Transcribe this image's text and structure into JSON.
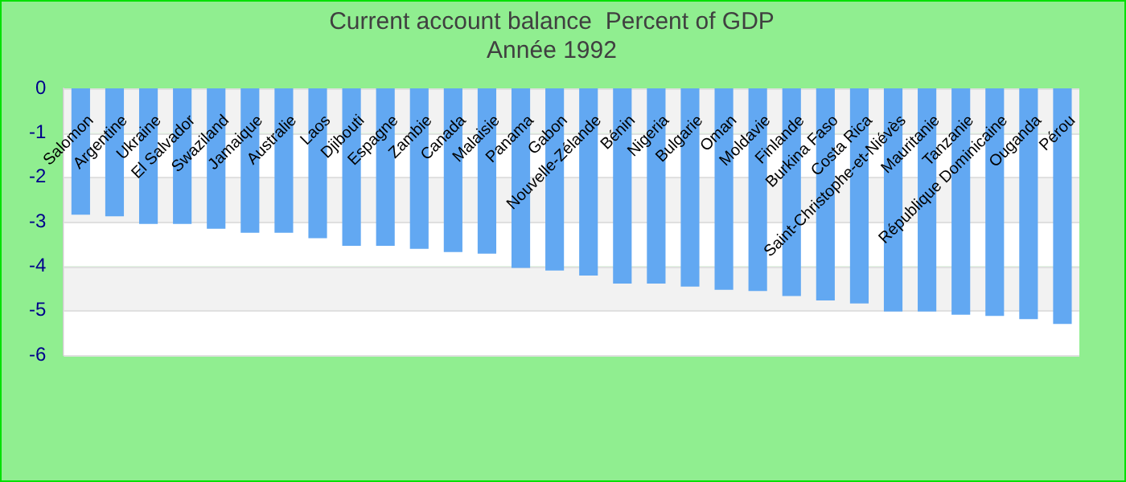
{
  "chart_data": {
    "type": "bar",
    "title": "Current account balance  Percent of GDP",
    "subtitle": "Année 1992",
    "categories": [
      "Salomon",
      "Argentine",
      "Ukraine",
      "El Salvador",
      "Swaziland",
      "Jamaique",
      "Australie",
      "Laos",
      "Djibouti",
      "Espagne",
      "Zambie",
      "Canada",
      "Malaisie",
      "Panama",
      "Gabon",
      "Nouvelle-Zélande",
      "Bénin",
      "Nigeria",
      "Bulgarie",
      "Oman",
      "Moldavie",
      "Finlande",
      "Burkina Faso",
      "Costa Rica",
      "Saint-Christophe-et-Niévès",
      "Mauritanie",
      "Tanzanie",
      "République Dominicaine",
      "Ouganda",
      "Pérou"
    ],
    "values": [
      -2.84,
      -2.88,
      -3.05,
      -3.05,
      -3.16,
      -3.25,
      -3.25,
      -3.37,
      -3.54,
      -3.54,
      -3.61,
      -3.68,
      -3.72,
      -4.04,
      -4.1,
      -4.21,
      -4.39,
      -4.39,
      -4.46,
      -4.53,
      -4.56,
      -4.67,
      -4.77,
      -4.84,
      -5.02,
      -5.02,
      -5.09,
      -5.12,
      -5.19,
      -5.3
    ],
    "color": "#62a8f2",
    "ylim": [
      -6,
      0
    ],
    "yticks": [
      -6,
      -5,
      -4,
      -3,
      -2,
      -1,
      0
    ],
    "grid": "y"
  }
}
